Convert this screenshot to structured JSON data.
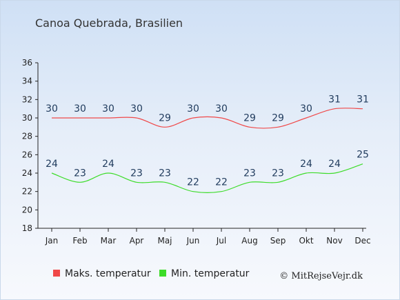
{
  "chart_data": {
    "type": "line",
    "title": "Canoa Quebrada, Brasilien",
    "categories": [
      "Jan",
      "Feb",
      "Mar",
      "Apr",
      "Maj",
      "Jun",
      "Jul",
      "Aug",
      "Sep",
      "Okt",
      "Nov",
      "Dec"
    ],
    "ylim": [
      18,
      36
    ],
    "yticks": [
      18,
      20,
      22,
      24,
      26,
      28,
      30,
      32,
      34,
      36
    ],
    "grid": false,
    "legend_position": "bottom",
    "series": [
      {
        "name": "Maks. temperatur",
        "color": "#f04848",
        "values": [
          30,
          30,
          30,
          30,
          29,
          30,
          30,
          29,
          29,
          30,
          31,
          31
        ]
      },
      {
        "name": "Min. temperatur",
        "color": "#3cdc28",
        "values": [
          24,
          23,
          24,
          23,
          23,
          22,
          22,
          23,
          23,
          24,
          24,
          25
        ]
      }
    ],
    "credit": "© MitRejseVejr.dk"
  }
}
